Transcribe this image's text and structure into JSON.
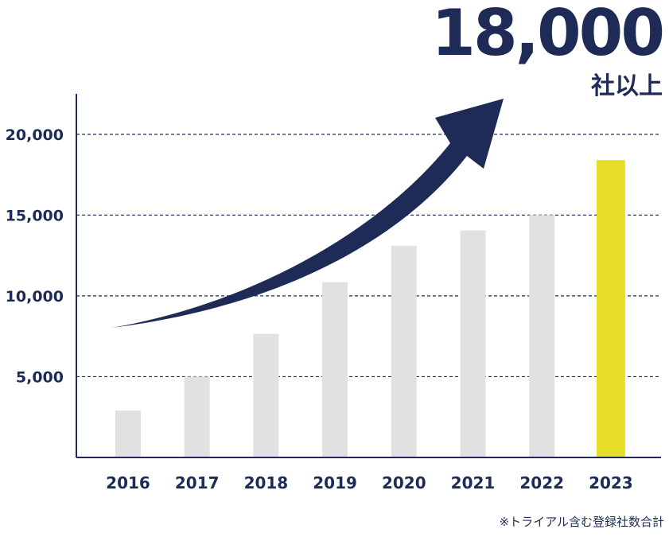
{
  "headline": {
    "value": "18,000",
    "unit": "社以上"
  },
  "footnote": "※トライアル含む登録社数合計",
  "colors": {
    "navy": "#1e2b57",
    "bar": "#e1e1e1",
    "highlight": "#e6de27",
    "grid": "#1e2b57"
  },
  "chart_data": {
    "type": "bar",
    "categories": [
      "2016",
      "2017",
      "2018",
      "2019",
      "2020",
      "2021",
      "2022",
      "2023"
    ],
    "values": [
      2900,
      5000,
      7650,
      10850,
      13100,
      14050,
      15000,
      18400
    ],
    "highlight_index": 7,
    "yticks": [
      5000,
      10000,
      15000,
      20000
    ],
    "ytick_labels": [
      "5,000",
      "10,000",
      "15,000",
      "20,000"
    ],
    "ylim": [
      0,
      22500
    ],
    "grid": "dashed horizontal",
    "title": "",
    "xlabel": "",
    "ylabel": "",
    "annotation": "upward trend arrow"
  }
}
